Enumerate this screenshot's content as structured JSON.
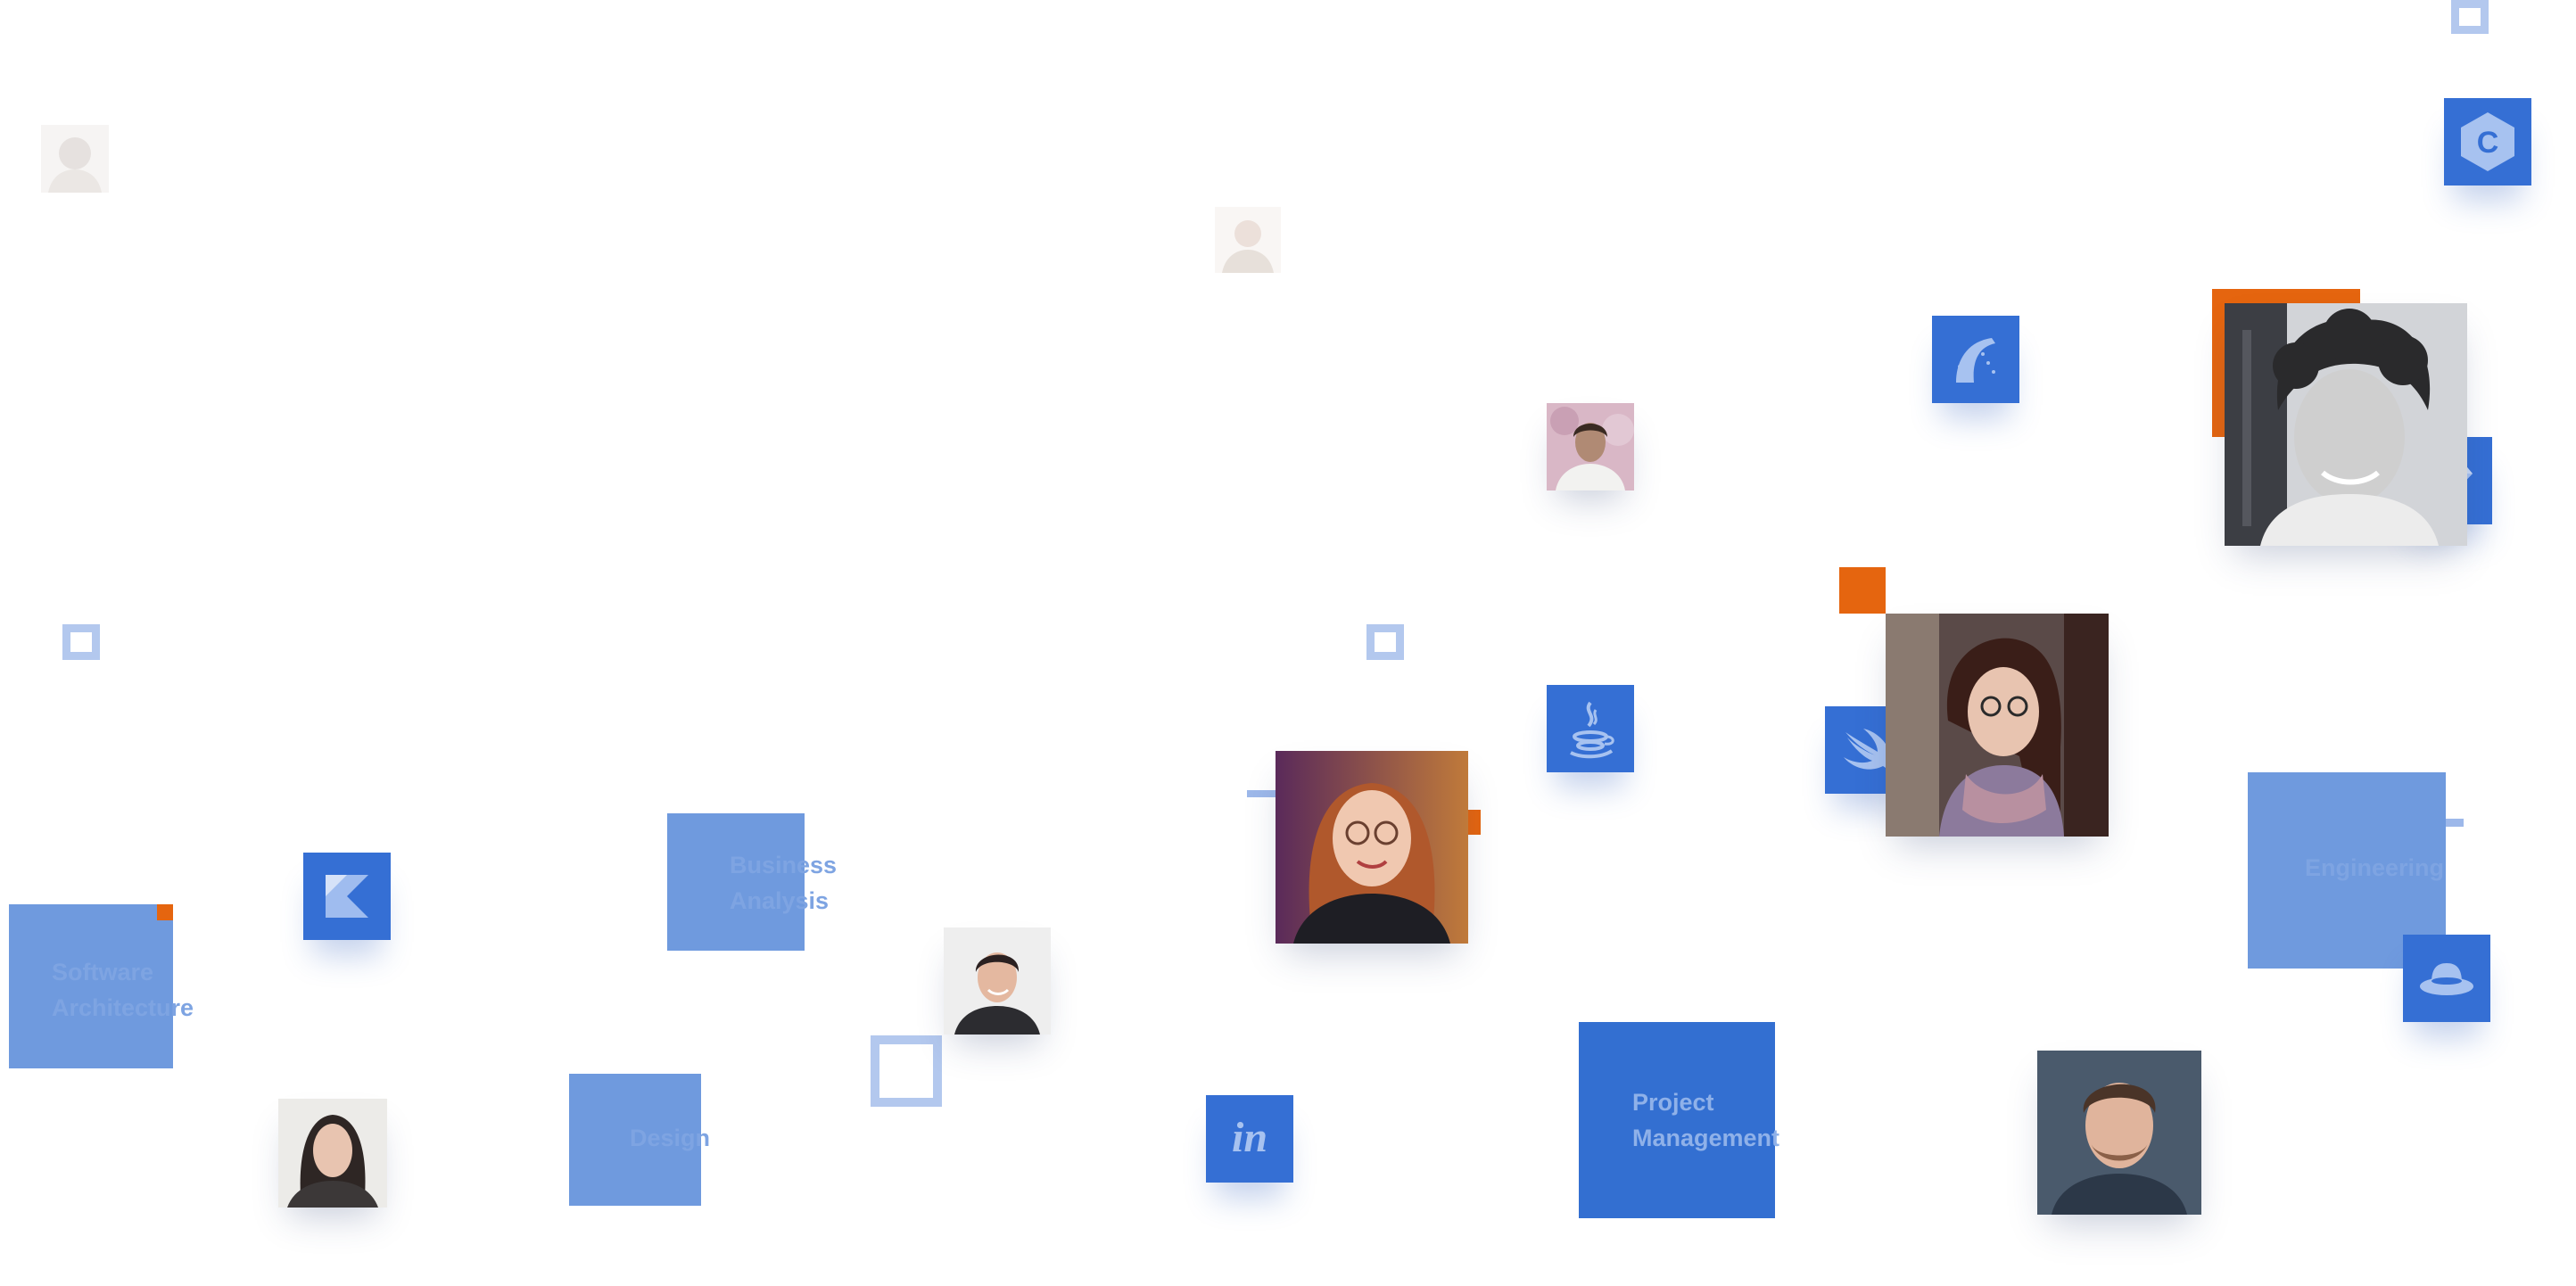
{
  "tiles": {
    "software_architecture": {
      "line1": "Software",
      "line2": "Architecture"
    },
    "business_analysis": {
      "line1": "Business",
      "line2": "Analysis"
    },
    "design": {
      "line1": "Design"
    },
    "engineering": {
      "line1": "Engineering"
    },
    "project_management": {
      "line1": "Project",
      "line2": "Management"
    }
  },
  "icons": {
    "kotlin": "kotlin-icon",
    "c_sharp": "c-sharp-icon",
    "rails": "rails-icon",
    "ruby": "ruby-icon",
    "java": "java-icon",
    "swift": "swift-icon",
    "invision": "invision-icon",
    "redhat": "redhat-icon"
  },
  "invision_glyph": "in",
  "c_glyph": "C",
  "colors": {
    "tile_light": "#6f9ade",
    "tile_dark": "#336fd1",
    "accent_orange": "#e5650f",
    "outline": "#b3c8ee"
  }
}
